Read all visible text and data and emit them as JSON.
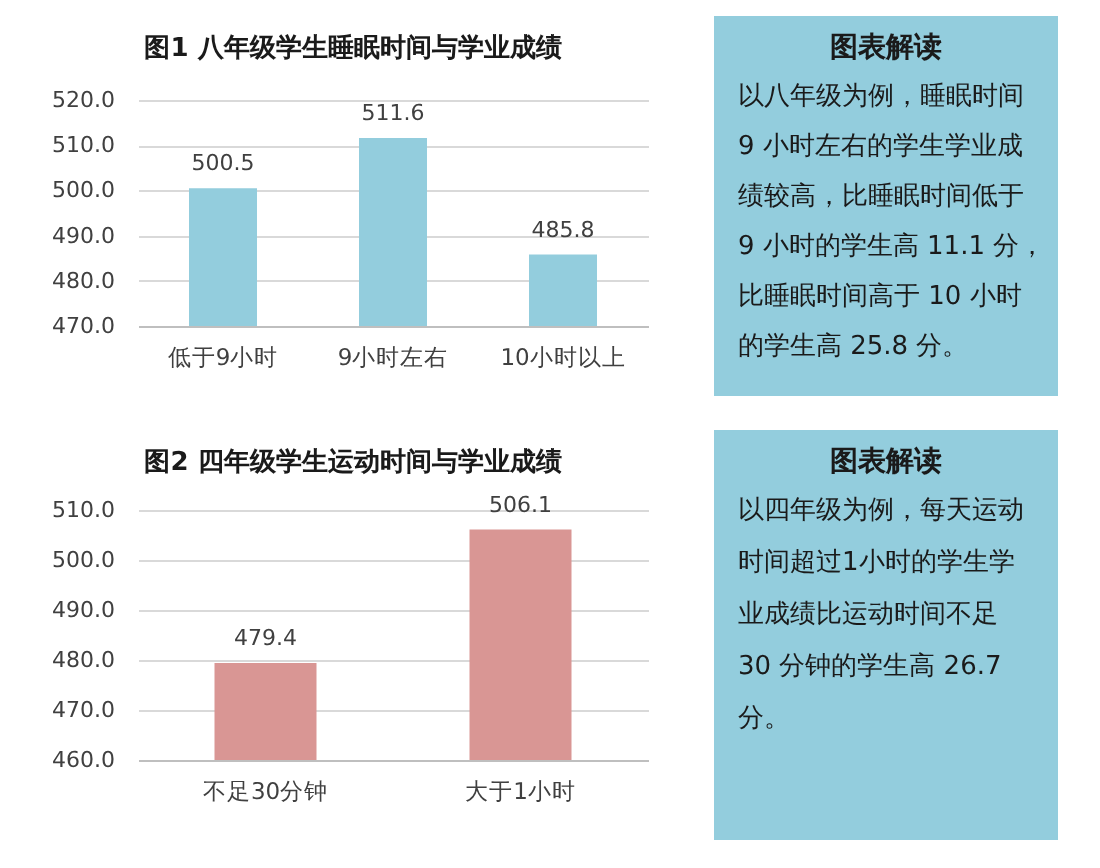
{
  "chart_data": [
    {
      "type": "bar",
      "title": "图1 八年级学生睡眠时间与学业成绩",
      "categories": [
        "低于9小时",
        "9小时左右",
        "10小时以上"
      ],
      "values": [
        500.5,
        511.6,
        485.8
      ],
      "color": "#93cddd",
      "ylim": [
        470,
        520
      ],
      "yticks": [
        {
          "value": 470,
          "label": "470.0"
        },
        {
          "value": 480,
          "label": "480.0"
        },
        {
          "value": 490,
          "label": "490.0"
        },
        {
          "value": 500,
          "label": "500.0"
        },
        {
          "value": 510,
          "label": "510.0"
        },
        {
          "value": 520,
          "label": "520.0"
        }
      ],
      "grid": "y",
      "data_labels": true
    },
    {
      "type": "other",
      "title": "图表解读",
      "annotations": [
        "以八年级为例，睡眠时间",
        "9 小时左右的学生学业成",
        "绩较高，比睡眠时间低于",
        "9 小时的学生高 11.1 分，",
        "比睡眠时间高于 10 小时",
        "的学生高 25.8 分。"
      ]
    },
    {
      "type": "bar",
      "title": "图2 四年级学生运动时间与学业成绩",
      "categories": [
        "不足30分钟",
        "大于1小时"
      ],
      "values": [
        479.4,
        506.1
      ],
      "color": "#d99694",
      "ylim": [
        460,
        510
      ],
      "yticks": [
        {
          "value": 460,
          "label": "460.0"
        },
        {
          "value": 470,
          "label": "470.0"
        },
        {
          "value": 480,
          "label": "480.0"
        },
        {
          "value": 490,
          "label": "490.0"
        },
        {
          "value": 500,
          "label": "500.0"
        },
        {
          "value": 510,
          "label": "510.0"
        }
      ],
      "grid": "y",
      "data_labels": true
    },
    {
      "type": "other",
      "title": "图表解读",
      "annotations": [
        "以四年级为例，每天运动",
        "时间超过1小时的学生学",
        "业成绩比运动时间不足",
        "30 分钟的学生高 26.7",
        "分。"
      ]
    }
  ]
}
